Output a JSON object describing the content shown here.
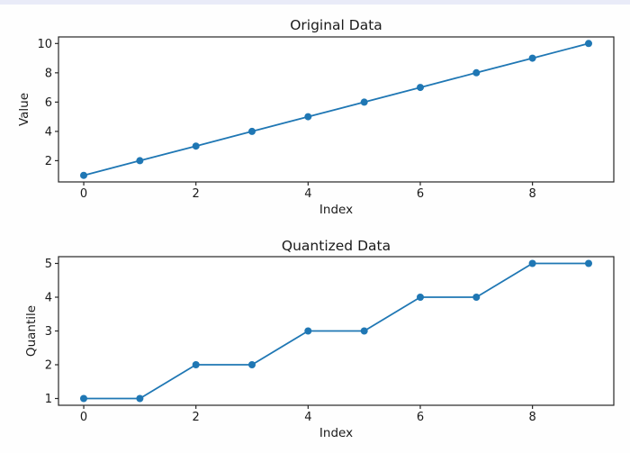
{
  "figure": {
    "background": "#fefefe",
    "top_strip_color": "#e9ebf8",
    "spine_color": "#262626",
    "text_color": "#1a1a1a"
  },
  "chart_data": [
    {
      "type": "line",
      "title": "Original Data",
      "xlabel": "Index",
      "ylabel": "Value",
      "x": [
        0,
        1,
        2,
        3,
        4,
        5,
        6,
        7,
        8,
        9
      ],
      "y": [
        1,
        2,
        3,
        4,
        5,
        6,
        7,
        8,
        9,
        10
      ],
      "xlim": [
        -0.45,
        9.45
      ],
      "ylim": [
        0.55,
        10.45
      ],
      "xticks": [
        0,
        2,
        4,
        6,
        8
      ],
      "yticks": [
        2,
        4,
        6,
        8,
        10
      ],
      "line_color": "#1f77b4",
      "marker": "o",
      "grid": false,
      "legend": null
    },
    {
      "type": "line",
      "title": "Quantized Data",
      "xlabel": "Index",
      "ylabel": "Quantile",
      "x": [
        0,
        1,
        2,
        3,
        4,
        5,
        6,
        7,
        8,
        9
      ],
      "y": [
        1,
        1,
        2,
        2,
        3,
        3,
        4,
        4,
        5,
        5
      ],
      "xlim": [
        -0.45,
        9.45
      ],
      "ylim": [
        0.8,
        5.2
      ],
      "xticks": [
        0,
        2,
        4,
        6,
        8
      ],
      "yticks": [
        1,
        2,
        3,
        4,
        5
      ],
      "line_color": "#1f77b4",
      "marker": "o",
      "grid": false,
      "legend": null
    }
  ]
}
